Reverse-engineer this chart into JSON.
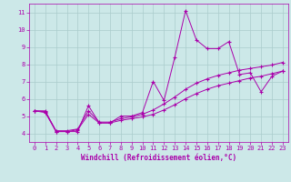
{
  "xlabel": "Windchill (Refroidissement éolien,°C)",
  "background_color": "#cce8e8",
  "grid_color": "#aacccc",
  "line_color": "#aa00aa",
  "xlim": [
    -0.5,
    23.5
  ],
  "ylim": [
    3.5,
    11.5
  ],
  "xticks": [
    0,
    1,
    2,
    3,
    4,
    5,
    6,
    7,
    8,
    9,
    10,
    11,
    12,
    13,
    14,
    15,
    16,
    17,
    18,
    19,
    20,
    21,
    22,
    23
  ],
  "yticks": [
    4,
    5,
    6,
    7,
    8,
    9,
    10,
    11
  ],
  "series1_x": [
    0,
    1,
    2,
    3,
    4,
    5,
    6,
    7,
    8,
    9,
    10,
    11,
    12,
    13,
    14,
    15,
    16,
    17,
    18,
    19,
    20,
    21,
    22,
    23
  ],
  "series1_y": [
    5.3,
    5.3,
    4.1,
    4.1,
    4.1,
    5.6,
    4.6,
    4.6,
    5.0,
    5.0,
    5.2,
    7.0,
    5.9,
    8.4,
    11.1,
    9.4,
    8.9,
    8.9,
    9.3,
    7.4,
    7.5,
    6.4,
    7.3,
    7.6
  ],
  "series2_x": [
    0,
    1,
    2,
    3,
    4,
    5,
    6,
    7,
    8,
    9,
    10,
    11,
    12,
    13,
    14,
    15,
    16,
    17,
    18,
    19,
    20,
    21,
    22,
    23
  ],
  "series2_y": [
    5.3,
    5.25,
    4.15,
    4.15,
    4.25,
    5.3,
    4.65,
    4.65,
    4.85,
    4.95,
    5.1,
    5.35,
    5.7,
    6.1,
    6.55,
    6.9,
    7.15,
    7.35,
    7.5,
    7.65,
    7.75,
    7.85,
    7.95,
    8.1
  ],
  "series3_x": [
    0,
    1,
    2,
    3,
    4,
    5,
    6,
    7,
    8,
    9,
    10,
    11,
    12,
    13,
    14,
    15,
    16,
    17,
    18,
    19,
    20,
    21,
    22,
    23
  ],
  "series3_y": [
    5.3,
    5.2,
    4.1,
    4.1,
    4.2,
    5.1,
    4.6,
    4.6,
    4.75,
    4.85,
    4.95,
    5.1,
    5.35,
    5.65,
    6.0,
    6.3,
    6.55,
    6.75,
    6.9,
    7.05,
    7.2,
    7.3,
    7.45,
    7.6
  ],
  "marker": "+",
  "markersize": 3,
  "linewidth": 0.7,
  "xlabel_fontsize": 5.5,
  "tick_fontsize": 5.0
}
